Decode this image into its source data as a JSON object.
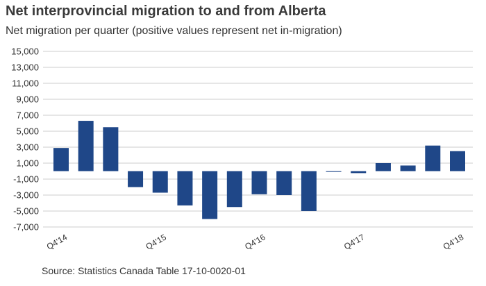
{
  "chart_data": {
    "type": "bar",
    "title": "Net interprovincial migration to and from Alberta",
    "subtitle": "Net migration per quarter (positive values represent net in-migration)",
    "source": "Source: Statistics Canada Table 17-10-0020-01",
    "xlabel": "",
    "ylabel": "",
    "ylim": [
      -7000,
      15000
    ],
    "yticks": [
      15000,
      13000,
      11000,
      9000,
      7000,
      5000,
      3000,
      1000,
      -1000,
      -3000,
      -5000,
      -7000
    ],
    "ytick_labels": [
      "15,000",
      "13,000",
      "11,000",
      "9,000",
      "7,000",
      "5,000",
      "3,000",
      "1,000",
      "-1,000",
      "-3,000",
      "-5,000",
      "-7,000"
    ],
    "categories": [
      "Q4'14",
      "Q1'15",
      "Q2'15",
      "Q3'15",
      "Q4'15",
      "Q1'16",
      "Q2'16",
      "Q3'16",
      "Q4'16",
      "Q1'17",
      "Q2'17",
      "Q3'17",
      "Q4'17",
      "Q1'18",
      "Q2'18",
      "Q3'18",
      "Q4'18"
    ],
    "xtick_labels": [
      "Q4'14",
      "",
      "",
      "",
      "Q4'15",
      "",
      "",
      "",
      "Q4'16",
      "",
      "",
      "",
      "Q4'17",
      "",
      "",
      "",
      "Q4'18"
    ],
    "values": [
      2900,
      6300,
      5500,
      -2000,
      -2700,
      -4300,
      -6000,
      -4500,
      -2900,
      -3000,
      -5000,
      -100,
      -250,
      1000,
      700,
      3200,
      2500
    ],
    "grid": true,
    "bar_color": "#1f4788",
    "grid_color": "#cccccc"
  }
}
